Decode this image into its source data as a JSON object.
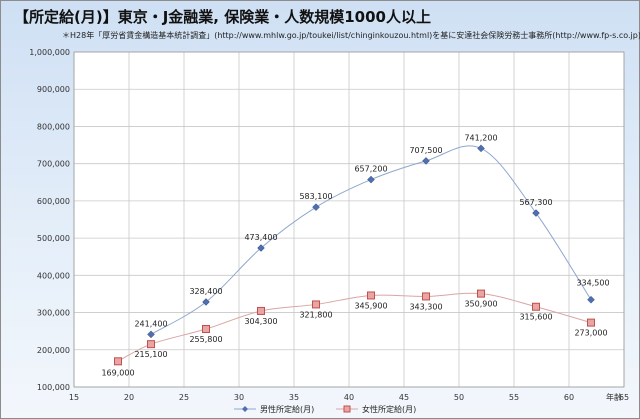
{
  "chart_data": {
    "type": "scatter",
    "title": "【所定給(月)】東京・J金融業, 保険業・人数規模1000人以上",
    "subtitle": "＊H28年「厚労省賃金構造基本統計調査」(http://www.mhlw.go.jp/toukei/list/chinginkouzou.html)を基に安達社会保険労務士事務所(http://www.fp-s.co.jp)が作成",
    "xlabel": "年齢",
    "ylabel": "",
    "xlim": [
      15,
      65
    ],
    "ylim": [
      100000,
      1000000
    ],
    "xticks": [
      "15",
      "20",
      "25",
      "30",
      "35",
      "40",
      "45",
      "50",
      "55",
      "60",
      "65"
    ],
    "yticks": [
      "100,000",
      "200,000",
      "300,000",
      "400,000",
      "500,000",
      "600,000",
      "700,000",
      "800,000",
      "900,000",
      "1,000,000"
    ],
    "grid": true,
    "legend": "bottom",
    "series": [
      {
        "name": "男性所定給(月)",
        "color": "#4f6fae",
        "marker": "diamond",
        "points": [
          {
            "x": 22,
            "y": 241400,
            "label": "241,400"
          },
          {
            "x": 27,
            "y": 328400,
            "label": "328,400"
          },
          {
            "x": 32,
            "y": 473400,
            "label": "473,400"
          },
          {
            "x": 37,
            "y": 583100,
            "label": "583,100"
          },
          {
            "x": 42,
            "y": 657200,
            "label": "657,200"
          },
          {
            "x": 47,
            "y": 707500,
            "label": "707,500"
          },
          {
            "x": 52,
            "y": 741200,
            "label": "741,200"
          },
          {
            "x": 57,
            "y": 567300,
            "label": "567,300"
          },
          {
            "x": 62,
            "y": 334500,
            "label": "334,500"
          }
        ]
      },
      {
        "name": "女性所定給(月)",
        "color": "#c0504d",
        "marker": "square",
        "points": [
          {
            "x": 19,
            "y": 169000,
            "label": "169,000"
          },
          {
            "x": 22,
            "y": 215100,
            "label": "215,100"
          },
          {
            "x": 27,
            "y": 255800,
            "label": "255,800"
          },
          {
            "x": 32,
            "y": 304300,
            "label": "304,300"
          },
          {
            "x": 37,
            "y": 321800,
            "label": "321,800"
          },
          {
            "x": 42,
            "y": 345900,
            "label": "345,900"
          },
          {
            "x": 47,
            "y": 343300,
            "label": "343,300"
          },
          {
            "x": 52,
            "y": 350900,
            "label": "350,900"
          },
          {
            "x": 57,
            "y": 315600,
            "label": "315,600"
          },
          {
            "x": 62,
            "y": 273000,
            "label": "273,000"
          }
        ]
      }
    ]
  }
}
